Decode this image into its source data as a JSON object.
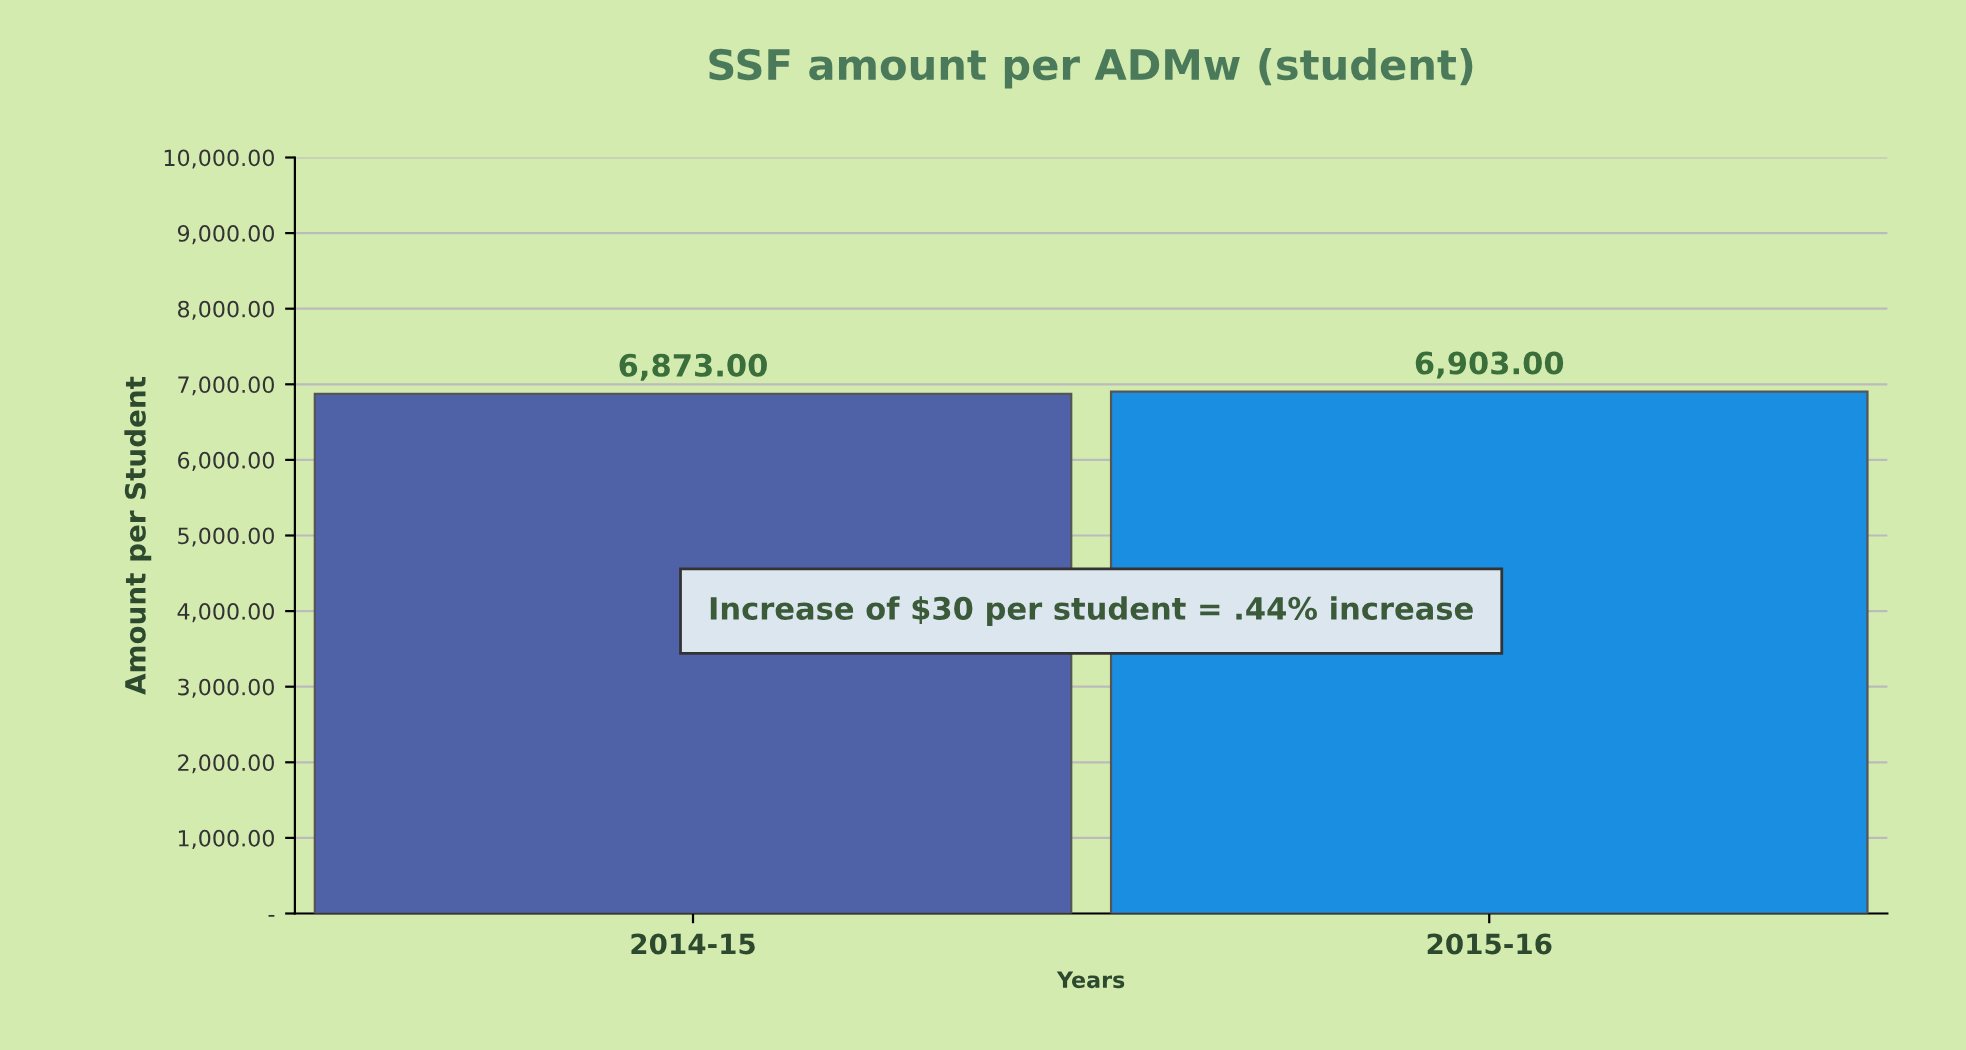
{
  "chart_data": {
    "type": "bar",
    "title": "SSF amount per ADMw (student)",
    "xlabel": "Years",
    "ylabel": "Amount per Student",
    "categories": [
      "2014-15",
      "2015-16"
    ],
    "series": [
      {
        "values": [
          6873,
          6903
        ],
        "colors": [
          "#4f62a8",
          "#1a8ee0"
        ],
        "value_labels": [
          "6,873.00",
          "6,903.00"
        ]
      }
    ],
    "ylim": [
      0,
      10000
    ],
    "yticks": [
      {
        "value": 0,
        "label": "-"
      },
      {
        "value": 1000,
        "label": "1,000.00"
      },
      {
        "value": 2000,
        "label": "2,000.00"
      },
      {
        "value": 3000,
        "label": "3,000.00"
      },
      {
        "value": 4000,
        "label": "4,000.00"
      },
      {
        "value": 5000,
        "label": "5,000.00"
      },
      {
        "value": 6000,
        "label": "6,000.00"
      },
      {
        "value": 7000,
        "label": "7,000.00"
      },
      {
        "value": 8000,
        "label": "8,000.00"
      },
      {
        "value": 9000,
        "label": "9,000.00"
      },
      {
        "value": 10000,
        "label": "10,000.00"
      }
    ],
    "grid": "y",
    "annotations": [
      "Increase of $30 per student = .44% increase"
    ]
  }
}
